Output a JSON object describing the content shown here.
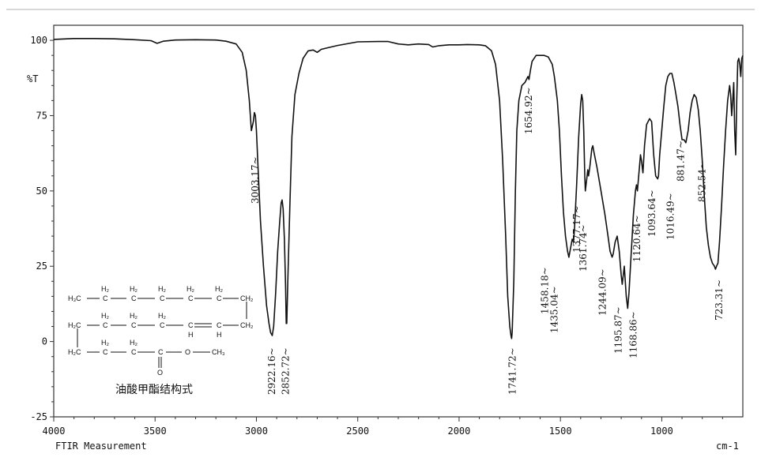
{
  "chart_data": {
    "type": "line",
    "title": "",
    "xlabel": "",
    "ylabel": "%T",
    "x_unit": "cm-1",
    "footer_left": "FTIR Measurement",
    "xlim": [
      4000,
      600
    ],
    "ylim": [
      -25,
      105
    ],
    "x_ticks": [
      "4000",
      "3500",
      "3000",
      "2500",
      "2000",
      "1500",
      "1000"
    ],
    "y_ticks": [
      "100",
      "75",
      "50",
      "25",
      "0",
      "-25"
    ],
    "grid": false,
    "series": [
      {
        "color": "#111111",
        "points": [
          [
            4000,
            100.3
          ],
          [
            3900,
            100.6
          ],
          [
            3800,
            100.6
          ],
          [
            3700,
            100.5
          ],
          [
            3600,
            100.2
          ],
          [
            3520,
            99.9
          ],
          [
            3490,
            99.0
          ],
          [
            3460,
            99.7
          ],
          [
            3400,
            100.1
          ],
          [
            3300,
            100.2
          ],
          [
            3200,
            100.1
          ],
          [
            3150,
            99.7
          ],
          [
            3100,
            98.8
          ],
          [
            3070,
            96
          ],
          [
            3050,
            90
          ],
          [
            3035,
            80
          ],
          [
            3025,
            70
          ],
          [
            3015,
            73
          ],
          [
            3010,
            76
          ],
          [
            3005,
            75
          ],
          [
            3000,
            70
          ],
          [
            2992,
            58
          ],
          [
            2980,
            40
          ],
          [
            2965,
            25
          ],
          [
            2950,
            12
          ],
          [
            2938,
            6
          ],
          [
            2930,
            3
          ],
          [
            2922,
            2
          ],
          [
            2915,
            5
          ],
          [
            2905,
            16
          ],
          [
            2895,
            30
          ],
          [
            2885,
            40
          ],
          [
            2878,
            46
          ],
          [
            2873,
            47
          ],
          [
            2868,
            44
          ],
          [
            2862,
            34
          ],
          [
            2856,
            18
          ],
          [
            2853,
            6
          ],
          [
            2850,
            6
          ],
          [
            2845,
            20
          ],
          [
            2835,
            45
          ],
          [
            2825,
            68
          ],
          [
            2810,
            82
          ],
          [
            2790,
            89
          ],
          [
            2770,
            94
          ],
          [
            2745,
            96.5
          ],
          [
            2720,
            96.8
          ],
          [
            2700,
            96
          ],
          [
            2680,
            97
          ],
          [
            2650,
            97.5
          ],
          [
            2600,
            98.3
          ],
          [
            2500,
            99.5
          ],
          [
            2400,
            99.6
          ],
          [
            2350,
            99.6
          ],
          [
            2300,
            98.8
          ],
          [
            2250,
            98.5
          ],
          [
            2200,
            98.8
          ],
          [
            2150,
            98.6
          ],
          [
            2130,
            97.8
          ],
          [
            2100,
            98.2
          ],
          [
            2050,
            98.5
          ],
          [
            2000,
            98.5
          ],
          [
            1960,
            98.6
          ],
          [
            1900,
            98.5
          ],
          [
            1870,
            98.2
          ],
          [
            1840,
            96.5
          ],
          [
            1820,
            92
          ],
          [
            1800,
            80
          ],
          [
            1785,
            60
          ],
          [
            1770,
            35
          ],
          [
            1760,
            15
          ],
          [
            1750,
            5
          ],
          [
            1744,
            2
          ],
          [
            1741,
            1
          ],
          [
            1738,
            3
          ],
          [
            1730,
            20
          ],
          [
            1722,
            50
          ],
          [
            1715,
            70
          ],
          [
            1705,
            80
          ],
          [
            1690,
            85
          ],
          [
            1675,
            86
          ],
          [
            1660,
            88
          ],
          [
            1655,
            87
          ],
          [
            1648,
            90
          ],
          [
            1640,
            93
          ],
          [
            1620,
            95
          ],
          [
            1600,
            95
          ],
          [
            1580,
            95
          ],
          [
            1560,
            94.5
          ],
          [
            1540,
            92
          ],
          [
            1530,
            88
          ],
          [
            1515,
            80
          ],
          [
            1505,
            70
          ],
          [
            1495,
            55
          ],
          [
            1485,
            43
          ],
          [
            1475,
            35
          ],
          [
            1465,
            30
          ],
          [
            1458,
            28
          ],
          [
            1450,
            31
          ],
          [
            1442,
            34
          ],
          [
            1435,
            33
          ],
          [
            1430,
            38
          ],
          [
            1420,
            52
          ],
          [
            1410,
            68
          ],
          [
            1400,
            79
          ],
          [
            1395,
            82
          ],
          [
            1390,
            80
          ],
          [
            1385,
            70
          ],
          [
            1380,
            55
          ],
          [
            1377,
            50
          ],
          [
            1370,
            54
          ],
          [
            1365,
            57
          ],
          [
            1361,
            55
          ],
          [
            1355,
            58
          ],
          [
            1345,
            64
          ],
          [
            1340,
            65
          ],
          [
            1335,
            63
          ],
          [
            1320,
            58
          ],
          [
            1300,
            50
          ],
          [
            1280,
            42
          ],
          [
            1265,
            35
          ],
          [
            1255,
            30
          ],
          [
            1245,
            28
          ],
          [
            1240,
            29
          ],
          [
            1230,
            33
          ],
          [
            1220,
            35
          ],
          [
            1210,
            30
          ],
          [
            1200,
            22
          ],
          [
            1195,
            19
          ],
          [
            1190,
            22
          ],
          [
            1185,
            25
          ],
          [
            1175,
            15
          ],
          [
            1168,
            11
          ],
          [
            1162,
            16
          ],
          [
            1150,
            30
          ],
          [
            1140,
            42
          ],
          [
            1130,
            50
          ],
          [
            1125,
            52
          ],
          [
            1120,
            50
          ],
          [
            1115,
            54
          ],
          [
            1105,
            62
          ],
          [
            1100,
            60
          ],
          [
            1093,
            56
          ],
          [
            1085,
            65
          ],
          [
            1075,
            72
          ],
          [
            1060,
            74
          ],
          [
            1050,
            73
          ],
          [
            1040,
            62
          ],
          [
            1030,
            55
          ],
          [
            1020,
            54
          ],
          [
            1016,
            55
          ],
          [
            1010,
            62
          ],
          [
            1000,
            70
          ],
          [
            990,
            78
          ],
          [
            980,
            85
          ],
          [
            970,
            88
          ],
          [
            960,
            89
          ],
          [
            950,
            89
          ],
          [
            940,
            86
          ],
          [
            930,
            82
          ],
          [
            920,
            78
          ],
          [
            910,
            72
          ],
          [
            900,
            67
          ],
          [
            890,
            67
          ],
          [
            881,
            66
          ],
          [
            870,
            70
          ],
          [
            860,
            76
          ],
          [
            850,
            80
          ],
          [
            840,
            82
          ],
          [
            830,
            81
          ],
          [
            820,
            77
          ],
          [
            810,
            70
          ],
          [
            800,
            60
          ],
          [
            790,
            48
          ],
          [
            780,
            38
          ],
          [
            770,
            32
          ],
          [
            760,
            28
          ],
          [
            750,
            26
          ],
          [
            740,
            25
          ],
          [
            735,
            24
          ],
          [
            730,
            25
          ],
          [
            723,
            26
          ],
          [
            715,
            33
          ],
          [
            705,
            45
          ],
          [
            695,
            58
          ],
          [
            685,
            70
          ],
          [
            675,
            80
          ],
          [
            665,
            85
          ],
          [
            660,
            82
          ],
          [
            655,
            75
          ],
          [
            650,
            80
          ],
          [
            645,
            86
          ],
          [
            640,
            70
          ],
          [
            635,
            62
          ],
          [
            630,
            80
          ],
          [
            625,
            93
          ],
          [
            620,
            94
          ],
          [
            615,
            92
          ],
          [
            610,
            88
          ],
          [
            605,
            94
          ],
          [
            600,
            95
          ]
        ]
      }
    ],
    "peak_labels": [
      "3003.17",
      "2922.16",
      "2852.72",
      "1741.72",
      "1654.92",
      "1458.18",
      "1435.04",
      "1377.17",
      "1361.74",
      "1244.09",
      "1195.87",
      "1168.86",
      "1120.64",
      "1093.64",
      "1016.49",
      "881.47",
      "852.54",
      "723.31"
    ],
    "structure": {
      "caption": "油酸甲酯结构式",
      "row1": [
        "H₃C",
        "H₂",
        "C",
        "H₂",
        "C",
        "H₂",
        "C",
        "H₂",
        "C",
        "H₂",
        "C",
        "CH₂"
      ],
      "row2": [
        "H₂C",
        "H₂",
        "C",
        "H₂",
        "C",
        "H₂",
        "C",
        "C",
        "H",
        "C",
        "H",
        "CH₂"
      ],
      "row3": [
        "H₂C",
        "H₂",
        "C",
        "H₂",
        "C",
        "C",
        "O",
        "CH₃",
        "O"
      ]
    }
  }
}
